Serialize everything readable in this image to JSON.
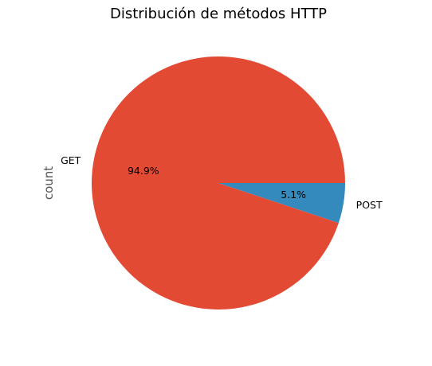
{
  "chart_data": {
    "type": "pie",
    "title": "Distribución de métodos HTTP",
    "ylabel": "count",
    "labels": [
      "GET",
      "POST"
    ],
    "values": [
      94.9,
      5.1
    ],
    "percent_labels": [
      "94.9%",
      "5.1%"
    ],
    "colors": [
      "#E24A33",
      "#348ABD"
    ],
    "start_angle_deg": 0,
    "direction": "counterclockwise"
  }
}
